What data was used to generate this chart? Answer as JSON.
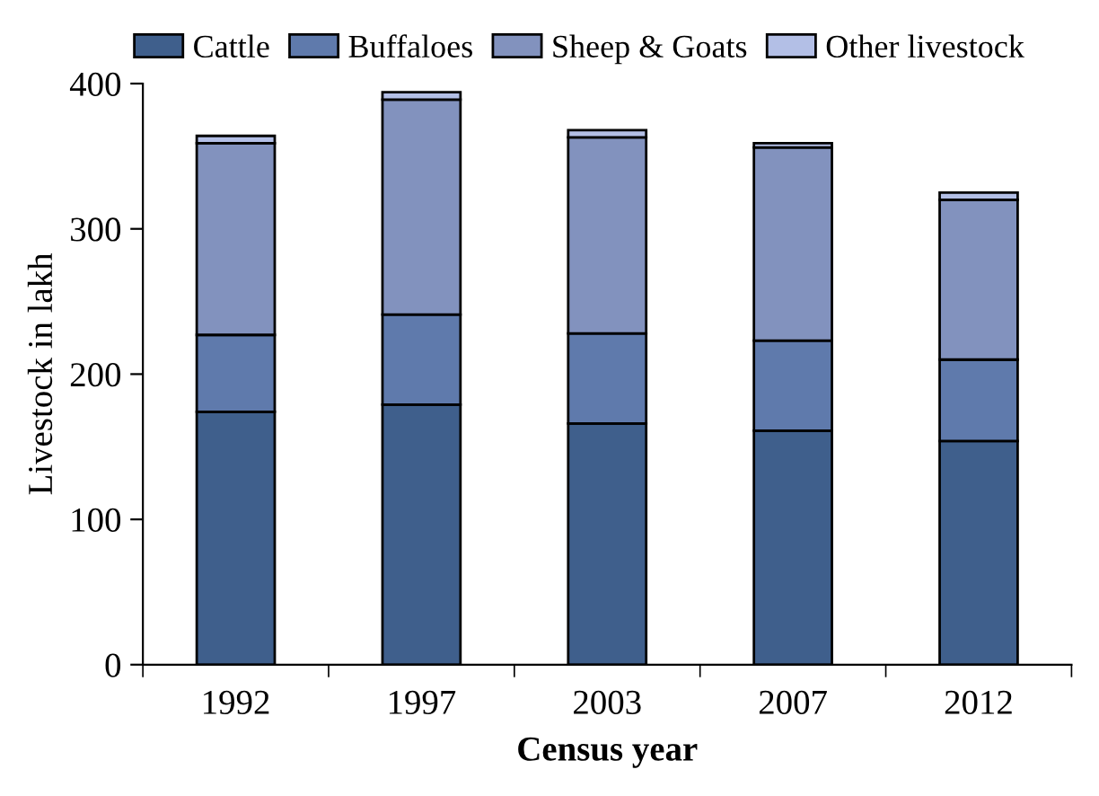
{
  "chart_data": {
    "type": "bar",
    "stacked": true,
    "xlabel": "Census year",
    "ylabel": "Livestock in lakh",
    "categories": [
      "1992",
      "1997",
      "2003",
      "2007",
      "2012"
    ],
    "series": [
      {
        "name": "Cattle",
        "color": "#3f5f8c",
        "values": [
          174,
          179,
          166,
          161,
          154
        ]
      },
      {
        "name": "Buffaloes",
        "color": "#5f7aac",
        "values": [
          53,
          62,
          62,
          62,
          56
        ]
      },
      {
        "name": "Sheep & Goats",
        "color": "#8292be",
        "values": [
          132,
          148,
          135,
          133,
          110
        ]
      },
      {
        "name": "Other livestock",
        "color": "#b3bfe6",
        "values": [
          5,
          5,
          5,
          3,
          5
        ]
      }
    ],
    "ylim": [
      0,
      400
    ],
    "yticks": [
      0,
      100,
      200,
      300,
      400
    ],
    "grid": false,
    "legend": "top"
  }
}
